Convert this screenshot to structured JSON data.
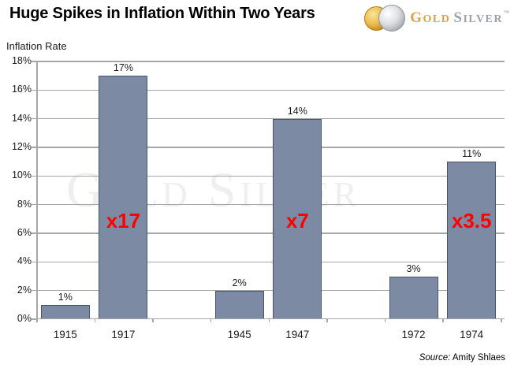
{
  "header": {
    "title": "Huge Spikes in Inflation Within Two Years",
    "logo": {
      "gold_text": "GOLD",
      "silver_text": "SILVER",
      "tm": "™"
    }
  },
  "axis_title": "Inflation Rate",
  "watermark": "Gold Silver",
  "source": {
    "prefix": "Source:",
    "text": " Amity Shlaes"
  },
  "chart_data": {
    "type": "bar",
    "title": "Huge Spikes in Inflation Within Two Years",
    "xlabel": "",
    "ylabel": "Inflation Rate",
    "ylim": [
      0,
      18
    ],
    "ytick_step": 2,
    "ytick_labels": [
      "0%",
      "2%",
      "4%",
      "6%",
      "8%",
      "10%",
      "12%",
      "14%",
      "16%",
      "18%"
    ],
    "grid": true,
    "legend": "none",
    "categories": [
      "1915",
      "1917",
      "1945",
      "1947",
      "1972",
      "1974"
    ],
    "values": [
      1,
      17,
      2,
      14,
      3,
      11
    ],
    "bar_labels": [
      "1%",
      "17%",
      "2%",
      "14%",
      "3%",
      "11%"
    ],
    "annotations": [
      "",
      "x17",
      "",
      "x7",
      "",
      "x3.5"
    ],
    "slots": [
      0,
      1,
      3,
      4,
      6,
      7
    ],
    "slot_count": 8,
    "source": "Source: Amity Shlaes",
    "watermark": "GOLD SILVER"
  },
  "colors": {
    "bar_fill": "#7c8ba3",
    "bar_border": "#47566e",
    "grid": "#a6a6a6",
    "annotation_red": "#ff0000",
    "watermark": "#f0efef",
    "logo_gold": "#dfa141",
    "logo_silver": "#9ea2a6"
  }
}
